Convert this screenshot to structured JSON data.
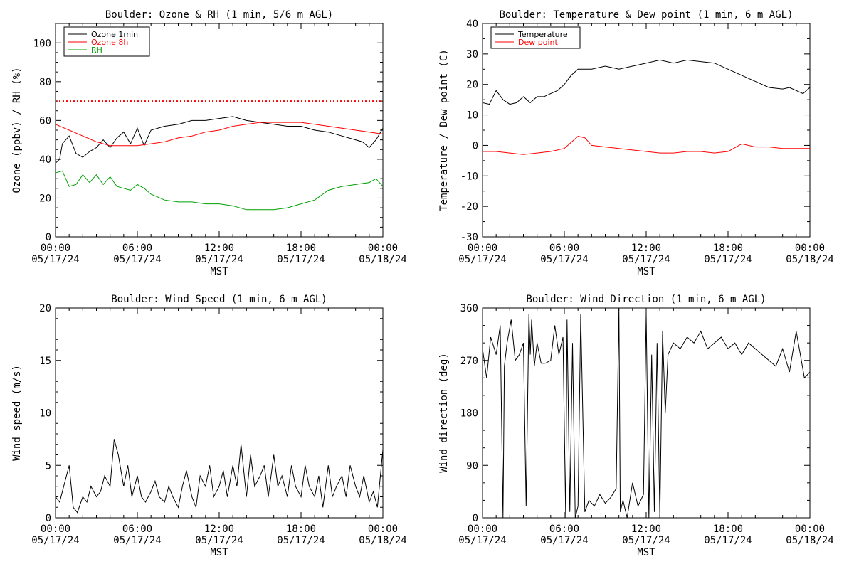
{
  "chart_data": [
    {
      "id": "ozone",
      "type": "line",
      "title": "Boulder: Ozone & RH (1 min, 5/6 m AGL)",
      "xlabel": "MST",
      "ylabel": "Ozone (ppbv) / RH (%)",
      "xticks": [
        "00:00|05/17/24",
        "06:00|05/17/24",
        "12:00|05/17/24",
        "18:00|05/17/24",
        "00:00|05/18/24"
      ],
      "xlim": [
        0,
        24
      ],
      "ylim": [
        0,
        110
      ],
      "yticks": [
        0,
        20,
        40,
        60,
        80,
        100
      ],
      "legend_position": "top-left",
      "reference_line": {
        "y": 70,
        "color": "#ff0000",
        "style": "dotted"
      },
      "series": [
        {
          "name": "Ozone 1min",
          "color": "#000000",
          "x": [
            0,
            0.3,
            0.5,
            1,
            1.5,
            2,
            2.5,
            3,
            3.5,
            4,
            4.5,
            5,
            5.5,
            6,
            6.5,
            7,
            8,
            9,
            10,
            11,
            12,
            13,
            14,
            15,
            16,
            17,
            18,
            19,
            20,
            21,
            22,
            22.5,
            23,
            23.5,
            24
          ],
          "y": [
            38,
            40,
            48,
            52,
            43,
            41,
            44,
            46,
            50,
            46,
            51,
            54,
            48,
            56,
            47,
            55,
            57,
            58,
            60,
            60,
            61,
            62,
            60,
            59,
            58,
            57,
            57,
            55,
            54,
            52,
            50,
            49,
            46,
            50,
            56
          ]
        },
        {
          "name": "Ozone 8h",
          "color": "#ff0000",
          "x": [
            0,
            1,
            2,
            3,
            4,
            5,
            6,
            7,
            8,
            9,
            10,
            11,
            12,
            13,
            14,
            15,
            16,
            17,
            18,
            19,
            20,
            21,
            22,
            23,
            24
          ],
          "y": [
            58,
            55,
            52,
            49,
            47,
            47,
            47,
            48,
            49,
            51,
            52,
            54,
            55,
            57,
            58,
            59,
            59,
            59,
            59,
            58,
            57,
            56,
            55,
            54,
            53
          ]
        },
        {
          "name": "RH",
          "color": "#00a000",
          "x": [
            0,
            0.5,
            1,
            1.5,
            2,
            2.5,
            3,
            3.5,
            4,
            4.5,
            5,
            5.5,
            6,
            6.5,
            7,
            8,
            9,
            10,
            11,
            12,
            13,
            14,
            15,
            16,
            17,
            18,
            19,
            20,
            21,
            22,
            23,
            23.5,
            24
          ],
          "y": [
            33,
            34,
            26,
            27,
            32,
            28,
            32,
            27,
            31,
            26,
            25,
            24,
            27,
            25,
            22,
            19,
            18,
            18,
            17,
            17,
            16,
            14,
            14,
            14,
            15,
            17,
            19,
            24,
            26,
            27,
            28,
            30,
            26
          ]
        }
      ]
    },
    {
      "id": "temp",
      "type": "line",
      "title": "Boulder: Temperature & Dew point (1 min, 6 m AGL)",
      "xlabel": "MST",
      "ylabel": "Temperature / Dew point (C)",
      "xticks": [
        "00:00|05/17/24",
        "06:00|05/17/24",
        "12:00|05/17/24",
        "18:00|05/17/24",
        "00:00|05/18/24"
      ],
      "xlim": [
        0,
        24
      ],
      "ylim": [
        -30,
        40
      ],
      "yticks": [
        -30,
        -20,
        -10,
        0,
        10,
        20,
        30,
        40
      ],
      "legend_position": "top-left",
      "series": [
        {
          "name": "Temperature",
          "color": "#000000",
          "x": [
            0,
            0.5,
            1,
            1.5,
            2,
            2.5,
            3,
            3.5,
            4,
            4.5,
            5,
            5.5,
            6,
            6.5,
            7,
            8,
            9,
            10,
            11,
            12,
            13,
            14,
            15,
            16,
            17,
            18,
            19,
            20,
            21,
            22,
            22.5,
            23,
            23.5,
            24
          ],
          "y": [
            14,
            13.5,
            18,
            15,
            13.5,
            14,
            16,
            14,
            16,
            16,
            17,
            18,
            20,
            23,
            25,
            25,
            26,
            25,
            26,
            27,
            28,
            27,
            28,
            27.5,
            27,
            25,
            23,
            21,
            19,
            18.5,
            19,
            18,
            17,
            19
          ]
        },
        {
          "name": "Dew point",
          "color": "#ff0000",
          "x": [
            0,
            1,
            2,
            3,
            4,
            5,
            6,
            6.5,
            7,
            7.5,
            8,
            9,
            10,
            11,
            12,
            13,
            14,
            15,
            16,
            17,
            18,
            19,
            20,
            21,
            22,
            23,
            24
          ],
          "y": [
            -2,
            -2,
            -2.5,
            -3,
            -2.5,
            -2,
            -1,
            1,
            3,
            2.5,
            0,
            -0.5,
            -1,
            -1.5,
            -2,
            -2.5,
            -2.5,
            -2,
            -2,
            -2.5,
            -2,
            0.5,
            -0.5,
            -0.5,
            -1,
            -1,
            -1
          ]
        }
      ]
    },
    {
      "id": "wspd",
      "type": "line",
      "title": "Boulder: Wind Speed (1 min, 6 m AGL)",
      "xlabel": "MST",
      "ylabel": "Wind speed (m/s)",
      "xticks": [
        "00:00|05/17/24",
        "06:00|05/17/24",
        "12:00|05/17/24",
        "18:00|05/17/24",
        "00:00|05/18/24"
      ],
      "xlim": [
        0,
        24
      ],
      "ylim": [
        0,
        20
      ],
      "yticks": [
        0,
        5,
        10,
        15,
        20
      ],
      "series": [
        {
          "name": "",
          "color": "#000000",
          "x": [
            0,
            0.3,
            0.6,
            1,
            1.3,
            1.6,
            2,
            2.3,
            2.6,
            3,
            3.3,
            3.6,
            4,
            4.3,
            4.6,
            5,
            5.3,
            5.6,
            6,
            6.3,
            6.6,
            7,
            7.3,
            7.6,
            8,
            8.3,
            8.6,
            9,
            9.3,
            9.6,
            10,
            10.3,
            10.6,
            11,
            11.3,
            11.6,
            12,
            12.3,
            12.6,
            13,
            13.3,
            13.6,
            14,
            14.3,
            14.6,
            15,
            15.3,
            15.6,
            16,
            16.3,
            16.6,
            17,
            17.3,
            17.6,
            18,
            18.3,
            18.6,
            19,
            19.3,
            19.6,
            20,
            20.3,
            20.6,
            21,
            21.3,
            21.6,
            22,
            22.3,
            22.6,
            23,
            23.3,
            23.6,
            24
          ],
          "y": [
            2,
            1.5,
            3,
            5,
            1,
            0.5,
            2,
            1.5,
            3,
            2,
            2.5,
            4,
            3,
            7.5,
            6,
            3,
            5,
            2,
            4,
            2,
            1.5,
            2.5,
            3.5,
            2,
            1.5,
            3,
            2,
            1,
            3,
            4.5,
            2,
            1,
            4,
            3,
            5,
            2,
            3,
            4.5,
            2,
            5,
            3,
            7,
            2,
            6,
            3,
            4,
            5,
            2,
            6,
            3,
            4,
            2,
            5,
            3,
            2,
            5,
            3,
            2,
            4,
            1,
            5,
            2,
            3,
            4,
            2,
            5,
            3,
            2,
            4,
            1.5,
            2.5,
            1,
            6.5
          ]
        }
      ]
    },
    {
      "id": "wdir",
      "type": "line",
      "title": "Boulder: Wind Direction (1 min, 6 m AGL)",
      "xlabel": "MST",
      "ylabel": "Wind direction (deg)",
      "xticks": [
        "00:00|05/17/24",
        "06:00|05/17/24",
        "12:00|05/17/24",
        "18:00|05/17/24",
        "00:00|05/18/24"
      ],
      "xlim": [
        0,
        24
      ],
      "ylim": [
        0,
        360
      ],
      "yticks": [
        0,
        90,
        180,
        270,
        360
      ],
      "series": [
        {
          "name": "",
          "color": "#000000",
          "x": [
            0,
            0.3,
            0.6,
            1,
            1.3,
            1.5,
            1.6,
            1.8,
            2.1,
            2.4,
            2.7,
            3,
            3.2,
            3.4,
            3.5,
            3.6,
            3.8,
            4,
            4.3,
            4.6,
            5,
            5.3,
            5.6,
            5.9,
            6.1,
            6.2,
            6.4,
            6.6,
            6.8,
            7,
            7.2,
            7.5,
            7.8,
            8.2,
            8.6,
            9,
            9.4,
            9.8,
            10,
            10.1,
            10.3,
            10.6,
            11,
            11.4,
            11.8,
            12,
            12.2,
            12.4,
            12.6,
            12.8,
            13,
            13.2,
            13.4,
            13.6,
            14,
            14.5,
            15,
            15.5,
            16,
            16.5,
            17,
            17.5,
            18,
            18.5,
            19,
            19.5,
            20,
            20.5,
            21,
            21.5,
            22,
            22.5,
            23,
            23.3,
            23.6,
            24
          ],
          "y": [
            290,
            240,
            310,
            280,
            330,
            0,
            260,
            300,
            340,
            270,
            280,
            300,
            20,
            350,
            280,
            340,
            260,
            300,
            265,
            265,
            270,
            330,
            280,
            310,
            0,
            340,
            10,
            300,
            0,
            20,
            350,
            10,
            30,
            20,
            40,
            25,
            35,
            50,
            360,
            10,
            30,
            0,
            60,
            20,
            40,
            350,
            0,
            280,
            10,
            300,
            0,
            320,
            180,
            280,
            300,
            290,
            310,
            300,
            320,
            290,
            300,
            310,
            290,
            300,
            280,
            300,
            290,
            280,
            270,
            260,
            290,
            250,
            320,
            280,
            240,
            250
          ]
        }
      ]
    }
  ]
}
